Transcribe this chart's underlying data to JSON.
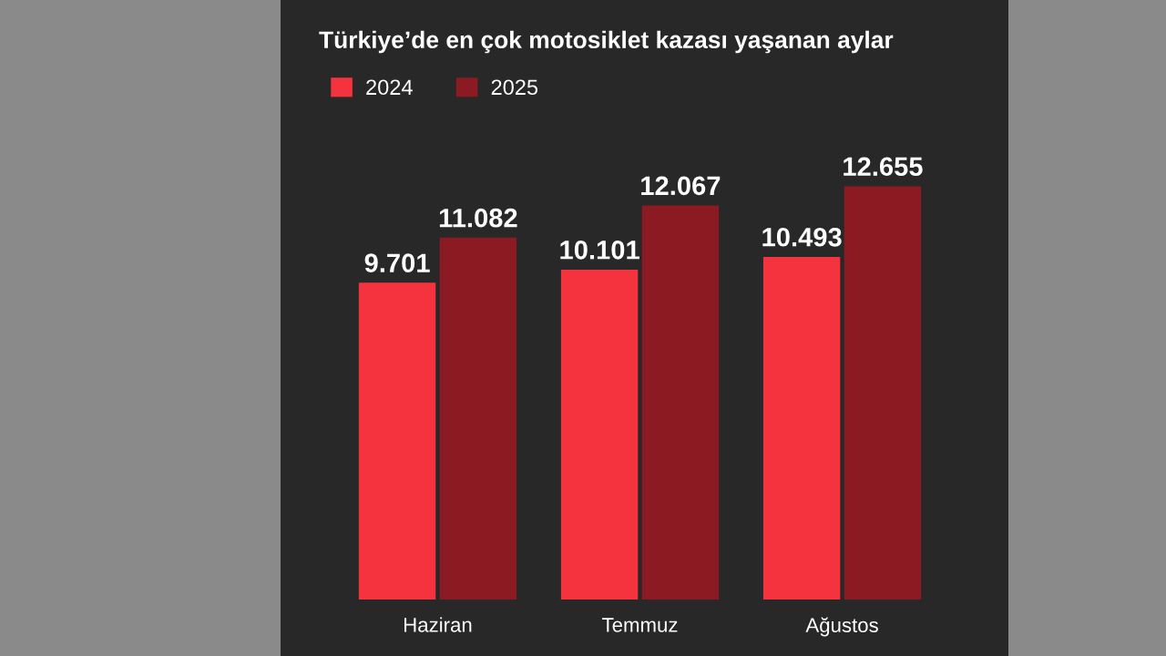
{
  "chart_data": {
    "type": "bar",
    "title": "Türkiye’de en çok motosiklet kazası yaşanan aylar",
    "categories": [
      "Haziran",
      "Temmuz",
      "Ağustos"
    ],
    "series": [
      {
        "name": "2024",
        "color": "#f5333f",
        "values": [
          9701,
          10101,
          10493
        ],
        "value_labels": [
          "9.701",
          "10.101",
          "10.493"
        ]
      },
      {
        "name": "2025",
        "color": "#8b1a22",
        "values": [
          11082,
          12067,
          12655
        ],
        "value_labels": [
          "11.082",
          "12.067",
          "12.655"
        ]
      }
    ],
    "grid": false,
    "legend": "top left"
  }
}
